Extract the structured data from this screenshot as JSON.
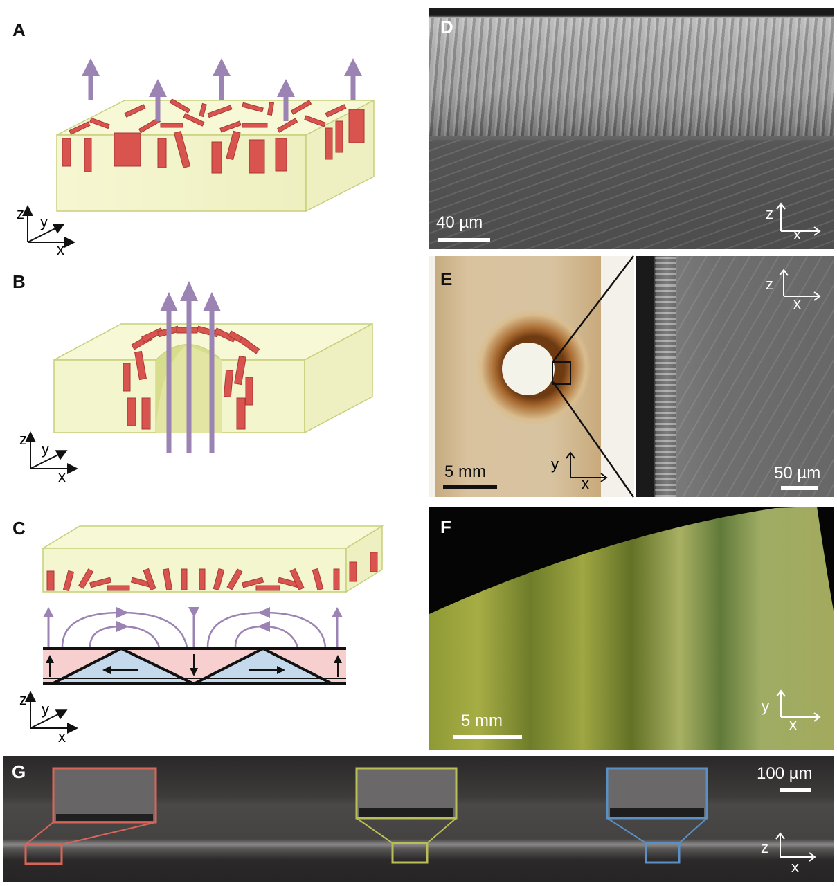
{
  "panels": {
    "A": {
      "label": "A"
    },
    "B": {
      "label": "B"
    },
    "C": {
      "label": "C"
    },
    "D": {
      "label": "D",
      "scale": "40 µm"
    },
    "E": {
      "label": "E",
      "scale_left": "5 mm",
      "scale_right": "50 µm"
    },
    "F": {
      "label": "F",
      "scale": "5 mm"
    },
    "G": {
      "label": "G",
      "scale": "100 µm"
    }
  },
  "axes": {
    "z": "z",
    "y": "y",
    "x": "x"
  },
  "colors": {
    "block_fill": "#f5f6cf",
    "platelet": "#d9534f",
    "field_arrow": "#9b84b3",
    "pink_layer": "#f7cfcf",
    "blue_layer": "#c4d9ec",
    "inset_red": "#d7665a",
    "inset_yellow": "#b9be57",
    "inset_blue": "#5a90c5"
  }
}
